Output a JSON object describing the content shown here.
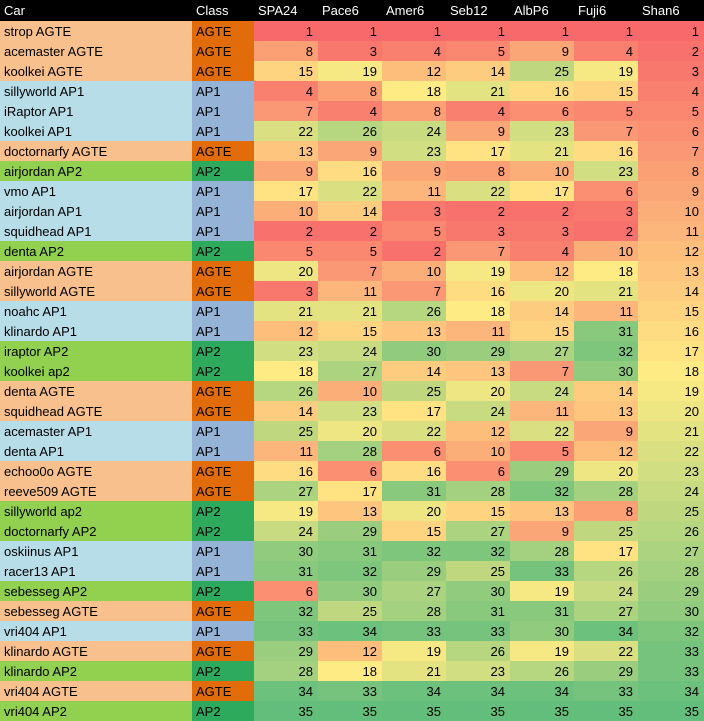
{
  "headers": [
    "Car",
    "Class",
    "SPA24",
    "Pace6",
    "Amer6",
    "Seb12",
    "AlbP6",
    "Fuji6",
    "Shan6"
  ],
  "class_colors": {
    "AGTE": {
      "car_bg": "#f8c08c",
      "class_bg": "#e26b0a"
    },
    "AP1": {
      "car_bg": "#b7dde8",
      "class_bg": "#95b3d7"
    },
    "AP2": {
      "car_bg": "#92d050",
      "class_bg": "#2eaa5c"
    }
  },
  "rows": [
    {
      "car": "strop AGTE",
      "cls": "AGTE",
      "v": [
        1,
        1,
        1,
        1,
        1,
        1,
        1
      ]
    },
    {
      "car": "acemaster AGTE",
      "cls": "AGTE",
      "v": [
        8,
        3,
        4,
        5,
        9,
        4,
        2
      ]
    },
    {
      "car": "koolkei AGTE",
      "cls": "AGTE",
      "v": [
        15,
        19,
        12,
        14,
        25,
        19,
        3
      ]
    },
    {
      "car": "sillyworld AP1",
      "cls": "AP1",
      "v": [
        4,
        8,
        18,
        21,
        16,
        15,
        4
      ]
    },
    {
      "car": "iRaptor AP1",
      "cls": "AP1",
      "v": [
        7,
        4,
        8,
        4,
        6,
        5,
        5
      ]
    },
    {
      "car": "koolkei AP1",
      "cls": "AP1",
      "v": [
        22,
        26,
        24,
        9,
        23,
        7,
        6
      ]
    },
    {
      "car": "doctornarfy AGTE",
      "cls": "AGTE",
      "v": [
        13,
        9,
        23,
        17,
        21,
        16,
        7
      ]
    },
    {
      "car": "airjordan AP2",
      "cls": "AP2",
      "v": [
        9,
        16,
        9,
        8,
        10,
        23,
        8
      ]
    },
    {
      "car": "vmo AP1",
      "cls": "AP1",
      "v": [
        17,
        22,
        11,
        22,
        17,
        6,
        9
      ]
    },
    {
      "car": "airjordan AP1",
      "cls": "AP1",
      "v": [
        10,
        14,
        3,
        2,
        2,
        3,
        10
      ]
    },
    {
      "car": "squidhead AP1",
      "cls": "AP1",
      "v": [
        2,
        2,
        5,
        3,
        3,
        2,
        11
      ]
    },
    {
      "car": "denta AP2",
      "cls": "AP2",
      "v": [
        5,
        5,
        2,
        7,
        4,
        10,
        12
      ]
    },
    {
      "car": "airjordan AGTE",
      "cls": "AGTE",
      "v": [
        20,
        7,
        10,
        19,
        12,
        18,
        13
      ]
    },
    {
      "car": "sillyworld AGTE",
      "cls": "AGTE",
      "v": [
        3,
        11,
        7,
        16,
        20,
        21,
        14
      ]
    },
    {
      "car": "noahc AP1",
      "cls": "AP1",
      "v": [
        21,
        21,
        26,
        18,
        14,
        11,
        15
      ]
    },
    {
      "car": "klinardo AP1",
      "cls": "AP1",
      "v": [
        12,
        15,
        13,
        11,
        15,
        31,
        16
      ]
    },
    {
      "car": "iraptor AP2",
      "cls": "AP2",
      "v": [
        23,
        24,
        30,
        29,
        27,
        32,
        17
      ]
    },
    {
      "car": "koolkei ap2",
      "cls": "AP2",
      "v": [
        18,
        27,
        14,
        13,
        7,
        30,
        18
      ]
    },
    {
      "car": "denta AGTE",
      "cls": "AGTE",
      "v": [
        26,
        10,
        25,
        20,
        24,
        14,
        19
      ]
    },
    {
      "car": "squidhead AGTE",
      "cls": "AGTE",
      "v": [
        14,
        23,
        17,
        24,
        11,
        13,
        20
      ]
    },
    {
      "car": "acemaster AP1",
      "cls": "AP1",
      "v": [
        25,
        20,
        22,
        12,
        22,
        9,
        21
      ]
    },
    {
      "car": "denta AP1",
      "cls": "AP1",
      "v": [
        11,
        28,
        6,
        10,
        5,
        12,
        22
      ]
    },
    {
      "car": "echoo0o AGTE",
      "cls": "AGTE",
      "v": [
        16,
        6,
        16,
        6,
        29,
        20,
        23
      ]
    },
    {
      "car": "reeve509 AGTE",
      "cls": "AGTE",
      "v": [
        27,
        17,
        31,
        28,
        32,
        28,
        24
      ]
    },
    {
      "car": "sillyworld ap2",
      "cls": "AP2",
      "v": [
        19,
        13,
        20,
        15,
        13,
        8,
        25
      ]
    },
    {
      "car": "doctornarfy AP2",
      "cls": "AP2",
      "v": [
        24,
        29,
        15,
        27,
        9,
        25,
        26
      ]
    },
    {
      "car": "oskiinus AP1",
      "cls": "AP1",
      "v": [
        30,
        31,
        32,
        32,
        28,
        17,
        27
      ]
    },
    {
      "car": "racer13 AP1",
      "cls": "AP1",
      "v": [
        31,
        32,
        29,
        25,
        33,
        26,
        28
      ]
    },
    {
      "car": "sebesseg AP2",
      "cls": "AP2",
      "v": [
        6,
        30,
        27,
        30,
        19,
        24,
        29
      ]
    },
    {
      "car": "sebesseg AGTE",
      "cls": "AGTE",
      "v": [
        32,
        25,
        28,
        31,
        31,
        27,
        30
      ]
    },
    {
      "car": "vri404 AP1",
      "cls": "AP1",
      "v": [
        33,
        34,
        33,
        33,
        30,
        34,
        32
      ]
    },
    {
      "car": "klinardo AGTE",
      "cls": "AGTE",
      "v": [
        29,
        12,
        19,
        26,
        19,
        22,
        33
      ]
    },
    {
      "car": "klinardo AP2",
      "cls": "AP2",
      "v": [
        28,
        18,
        21,
        23,
        26,
        29,
        33
      ]
    },
    {
      "car": "vri404 AGTE",
      "cls": "AGTE",
      "v": [
        34,
        33,
        34,
        34,
        34,
        33,
        34
      ]
    },
    {
      "car": "vri404 AP2",
      "cls": "AP2",
      "v": [
        35,
        35,
        35,
        35,
        35,
        35,
        35
      ]
    }
  ],
  "scale": {
    "min": 1,
    "max": 35,
    "low_color": "#f8696b",
    "mid_color": "#ffeb84",
    "high_color": "#63be7b"
  }
}
